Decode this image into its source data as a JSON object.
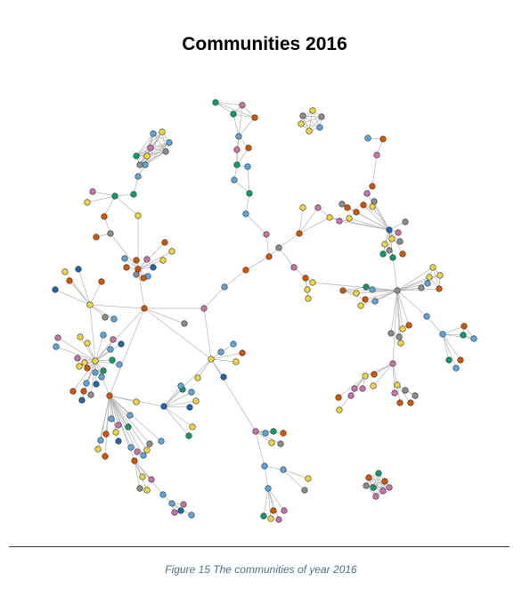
{
  "figure": {
    "title": "Communities 2016",
    "caption": "Figure 15 The communities of year 2016"
  },
  "palette": {
    "orange": "#d45500",
    "yellow": "#f2d43c",
    "blue": "#5aa6dc",
    "pink": "#c972a8",
    "gray": "#8c8c8c",
    "green": "#0f9a6e",
    "navy": "#2166a8",
    "edge": "#b8b8b8",
    "node_stroke": "#333333"
  }
}
